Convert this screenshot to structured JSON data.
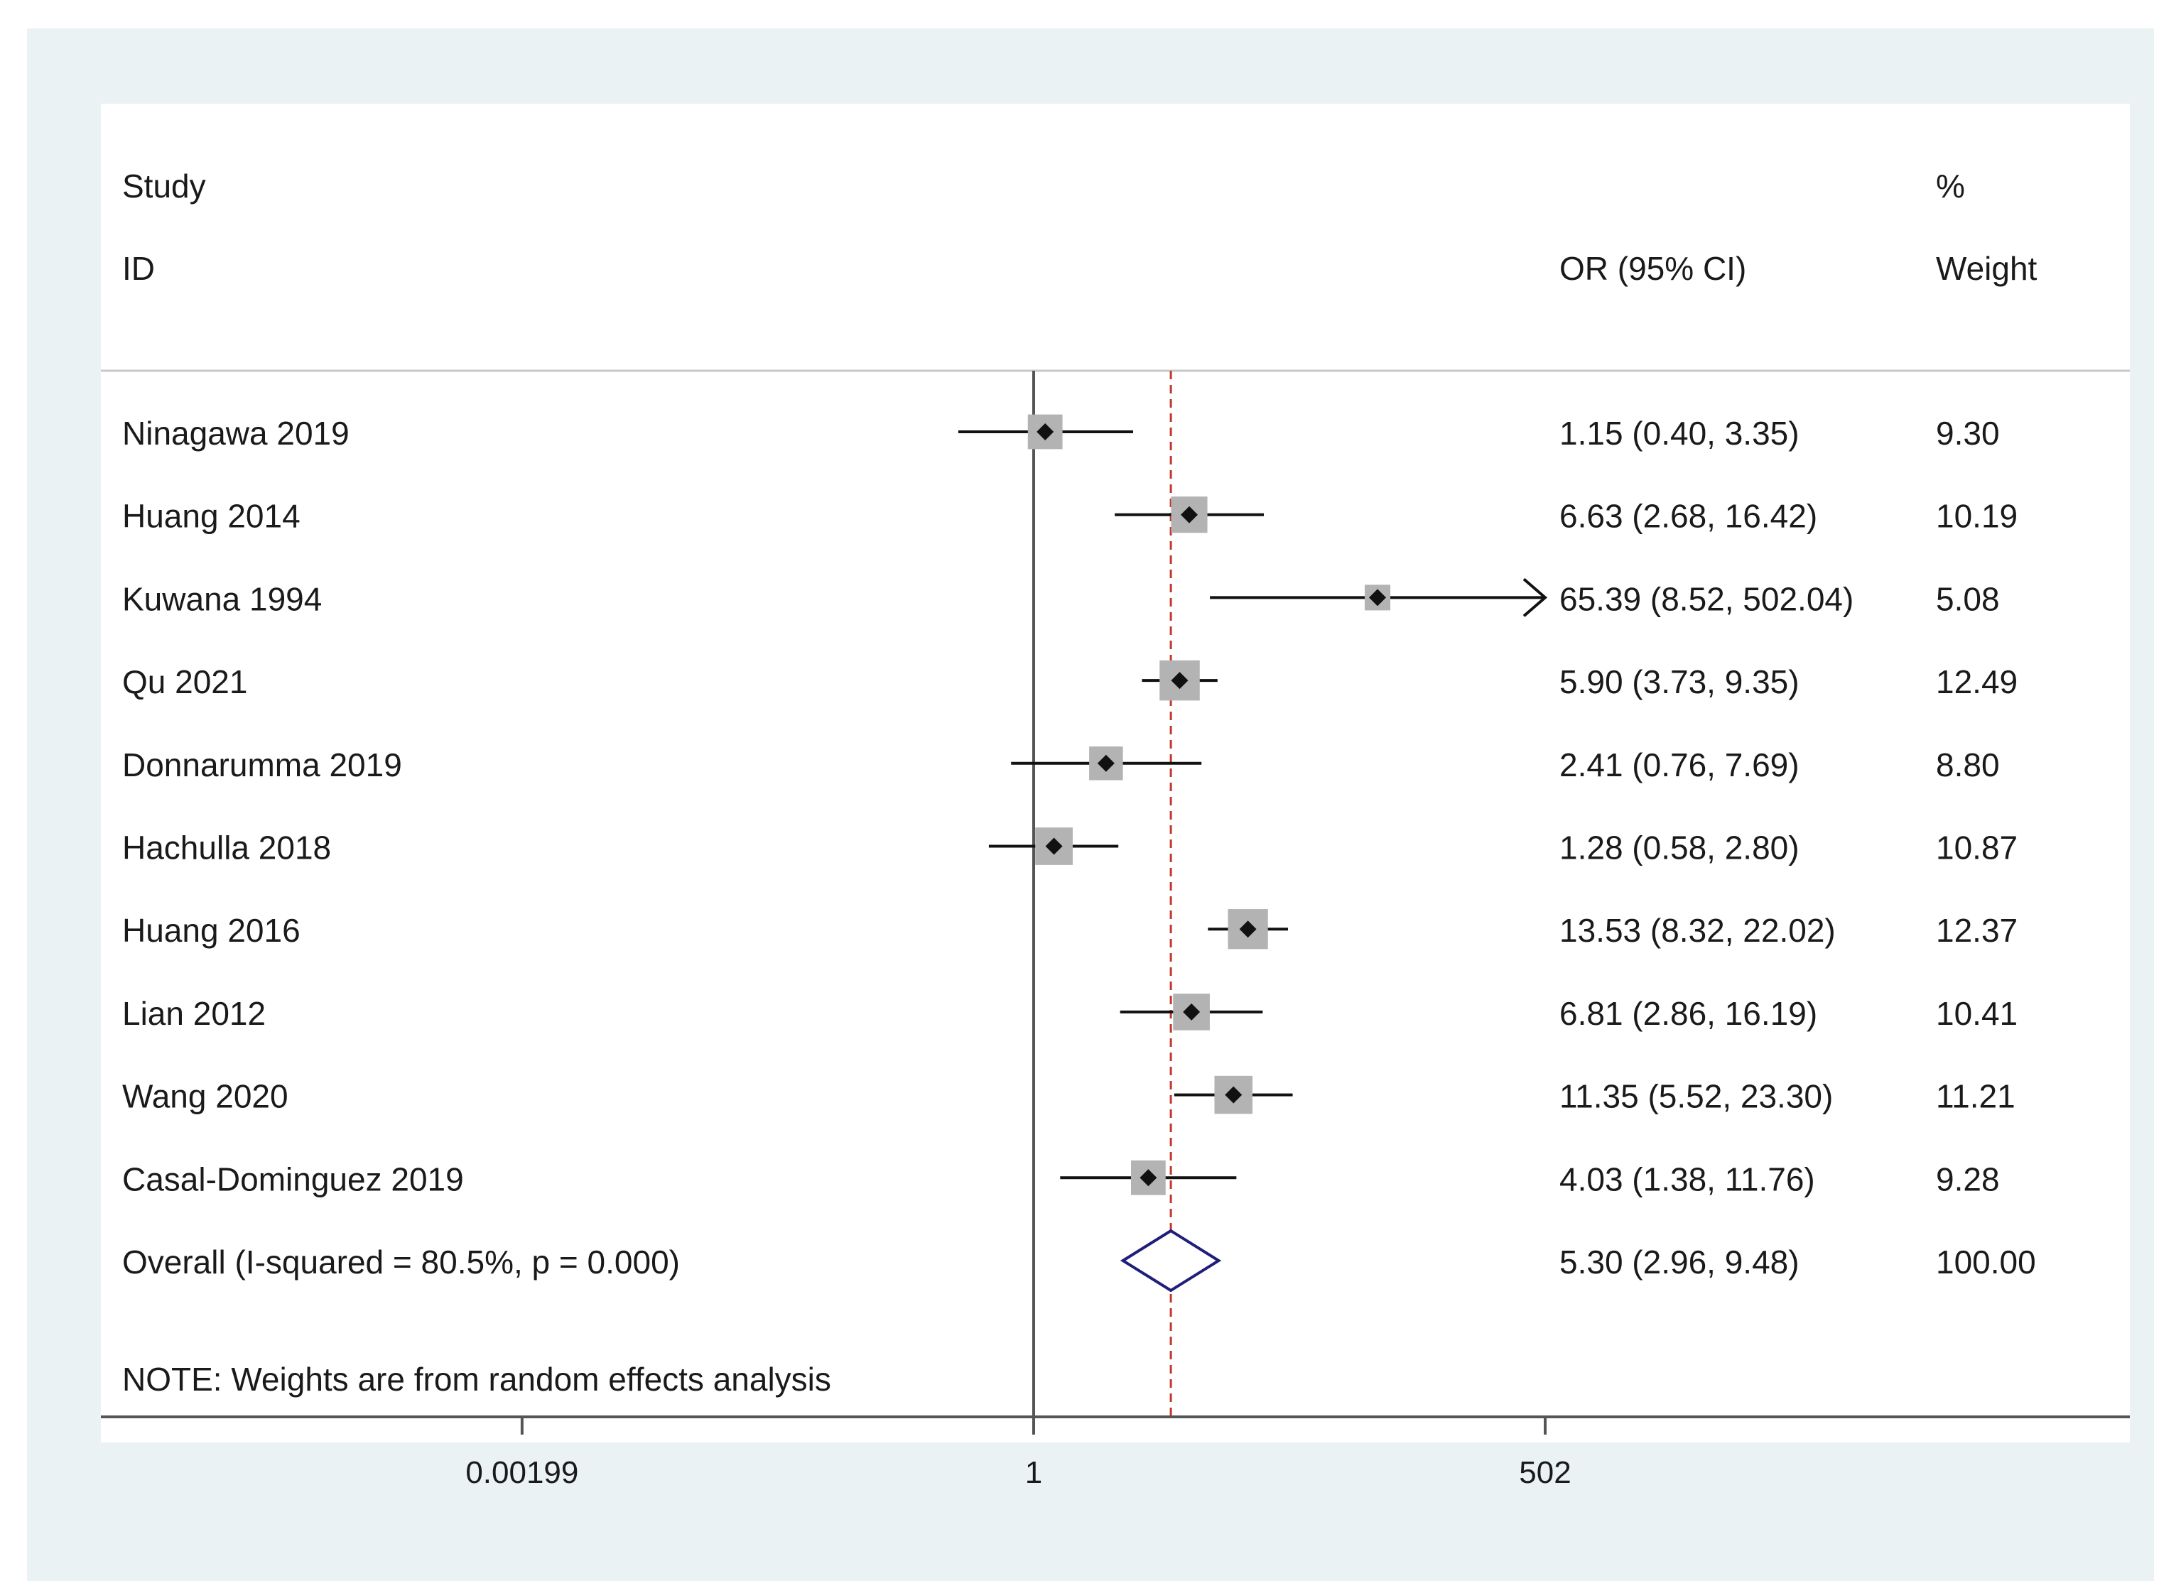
{
  "chart_data": {
    "type": "forest",
    "header": {
      "study": "Study",
      "id": "ID",
      "or_ci": "OR (95% CI)",
      "pct": "%",
      "weight": "Weight"
    },
    "studies": [
      {
        "label": "Ninagawa 2019",
        "or": 1.15,
        "lo": 0.4,
        "hi": 3.35,
        "text": "1.15 (0.40, 3.35)",
        "weight": "9.30",
        "w": 9.3
      },
      {
        "label": "Huang 2014",
        "or": 6.63,
        "lo": 2.68,
        "hi": 16.42,
        "text": "6.63 (2.68, 16.42)",
        "weight": "10.19",
        "w": 10.19
      },
      {
        "label": "Kuwana 1994",
        "or": 65.39,
        "lo": 8.52,
        "hi": 502.04,
        "text": "65.39 (8.52, 502.04)",
        "weight": "5.08",
        "w": 5.08,
        "arrow": true
      },
      {
        "label": "Qu 2021",
        "or": 5.9,
        "lo": 3.73,
        "hi": 9.35,
        "text": "5.90 (3.73, 9.35)",
        "weight": "12.49",
        "w": 12.49
      },
      {
        "label": "Donnarumma 2019",
        "or": 2.41,
        "lo": 0.76,
        "hi": 7.69,
        "text": "2.41 (0.76, 7.69)",
        "weight": "8.80",
        "w": 8.8
      },
      {
        "label": "Hachulla 2018",
        "or": 1.28,
        "lo": 0.58,
        "hi": 2.8,
        "text": "1.28 (0.58, 2.80)",
        "weight": "10.87",
        "w": 10.87
      },
      {
        "label": "Huang 2016",
        "or": 13.53,
        "lo": 8.32,
        "hi": 22.02,
        "text": "13.53 (8.32, 22.02)",
        "weight": "12.37",
        "w": 12.37
      },
      {
        "label": "Lian 2012",
        "or": 6.81,
        "lo": 2.86,
        "hi": 16.19,
        "text": "6.81 (2.86, 16.19)",
        "weight": "10.41",
        "w": 10.41
      },
      {
        "label": "Wang 2020",
        "or": 11.35,
        "lo": 5.52,
        "hi": 23.3,
        "text": "11.35 (5.52, 23.30)",
        "weight": "11.21",
        "w": 11.21
      },
      {
        "label": "Casal-Dominguez 2019",
        "or": 4.03,
        "lo": 1.38,
        "hi": 11.76,
        "text": "4.03 (1.38, 11.76)",
        "weight": "9.28",
        "w": 9.28
      }
    ],
    "overall": {
      "label": "Overall  (I-squared = 80.5%, p = 0.000)",
      "or": 5.3,
      "lo": 2.96,
      "hi": 9.48,
      "text": "5.30 (2.96, 9.48)",
      "weight": "100.00"
    },
    "note": "NOTE: Weights are from random effects analysis",
    "x_scale": "log",
    "xlim": [
      0.00199,
      502
    ],
    "null_line": 1,
    "x_ticks": [
      {
        "value": 0.00199,
        "label": "0.00199"
      },
      {
        "value": 1,
        "label": "1"
      },
      {
        "value": 502,
        "label": "502"
      }
    ],
    "colors": {
      "background": "#eaf2f3",
      "panel": "#ffffff",
      "marker": "#111111",
      "weight_box": "#b3b3b3",
      "overall_diamond": "#1f1f7a",
      "reference_line": "#c0392b",
      "axis": "#555555"
    }
  }
}
